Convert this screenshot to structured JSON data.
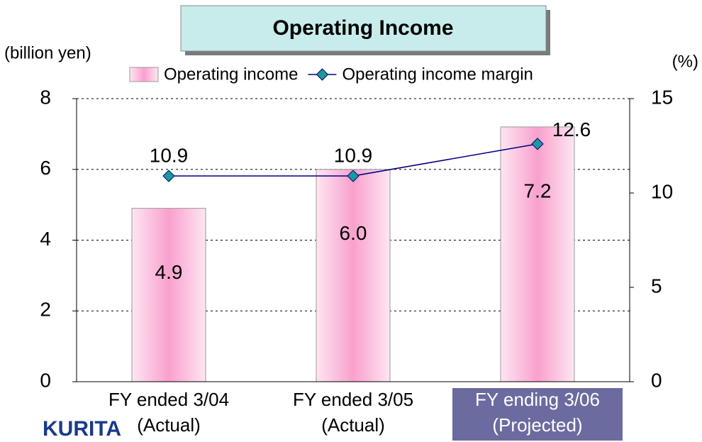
{
  "chart_data": {
    "type": "bar",
    "title": "Operating Income",
    "y_label": "(billion yen)",
    "y2_label": "(%)",
    "logo": "KURITA",
    "categories": [
      [
        "FY ended 3/04",
        "(Actual)"
      ],
      [
        "FY ended 3/05",
        "(Actual)"
      ],
      [
        "FY ending 3/06",
        "(Projected)"
      ]
    ],
    "series": [
      {
        "name": "Operating income",
        "type": "bar",
        "color": "#f9a0cc",
        "values": [
          4.9,
          6.0,
          7.2
        ],
        "value_labels": [
          "4.9",
          "6.0",
          "7.2"
        ]
      },
      {
        "name": "Operating income margin",
        "type": "line",
        "axis": "y2",
        "color": "#000080",
        "marker_color": "#1a9a9a",
        "values": [
          10.9,
          10.9,
          12.6
        ]
      }
    ],
    "ylim": [
      0,
      8
    ],
    "yticks": [
      0,
      2,
      4,
      6,
      8
    ],
    "y2lim": [
      0,
      15
    ],
    "y2ticks": [
      0,
      5,
      10,
      15
    ],
    "grid": true
  }
}
